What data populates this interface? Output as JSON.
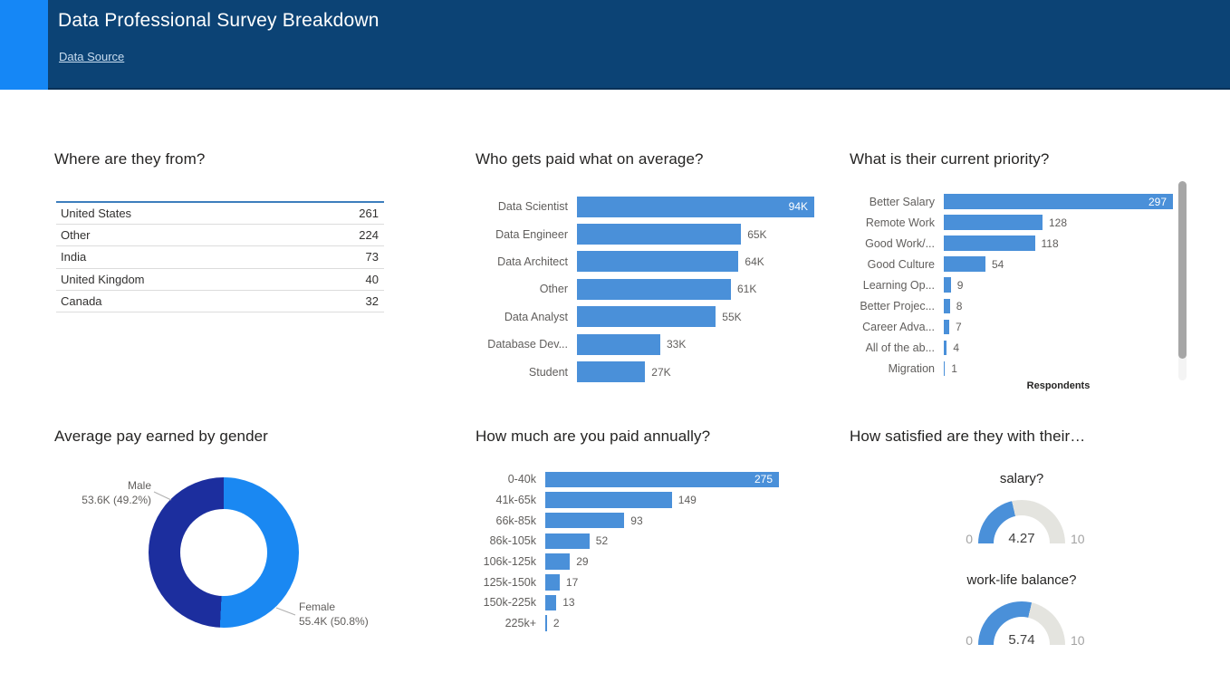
{
  "header": {
    "title": "Data Professional Survey Breakdown",
    "link_label": "Data Source"
  },
  "colors": {
    "header_bg": "#0c4375",
    "accent": "#1587f6",
    "bar_blue": "#4a90d9",
    "donut_male": "#1c2e9e",
    "donut_female": "#1a88f2",
    "gauge_track": "#e4e4df"
  },
  "chart_data": [
    {
      "id": "where_from",
      "type": "table",
      "title": "Where are they from?",
      "rows": [
        {
          "label": "United States",
          "value": "261"
        },
        {
          "label": "Other",
          "value": "224"
        },
        {
          "label": "India",
          "value": "73"
        },
        {
          "label": "United Kingdom",
          "value": "40"
        },
        {
          "label": "Canada",
          "value": "32"
        }
      ]
    },
    {
      "id": "avg_pay_by_title",
      "type": "bar",
      "orientation": "horizontal",
      "title": "Who gets paid what on average?",
      "categories": [
        "Data Scientist",
        "Data Engineer",
        "Data Architect",
        "Other",
        "Data Analyst",
        "Database Dev...",
        "Student"
      ],
      "values": [
        94,
        65,
        64,
        61,
        55,
        33,
        27
      ],
      "value_labels": [
        "94K",
        "65K",
        "64K",
        "61K",
        "55K",
        "33K",
        "27K"
      ],
      "xlim": [
        0,
        94
      ]
    },
    {
      "id": "current_priority",
      "type": "bar",
      "orientation": "horizontal",
      "title": "What is their current priority?",
      "categories": [
        "Better Salary",
        "Remote Work",
        "Good Work/...",
        "Good Culture",
        "Learning Op...",
        "Better Projec...",
        "Career Adva...",
        "All of the ab...",
        "Migration"
      ],
      "values": [
        297,
        128,
        118,
        54,
        9,
        8,
        7,
        4,
        1
      ],
      "value_labels": [
        "297",
        "128",
        "118",
        "54",
        "9",
        "8",
        "7",
        "4",
        "1"
      ],
      "xlabel": "Respondents",
      "xlim": [
        0,
        297
      ],
      "scrollbar": true
    },
    {
      "id": "pay_by_gender",
      "type": "donut",
      "title": "Average pay earned by gender",
      "slices": [
        {
          "label": "Male",
          "value_label": "53.6K (49.2%)",
          "percent": 49.2
        },
        {
          "label": "Female",
          "value_label": "55.4K (50.8%)",
          "percent": 50.8
        }
      ]
    },
    {
      "id": "annual_pay",
      "type": "bar",
      "orientation": "horizontal",
      "title": "How much are you paid annually?",
      "categories": [
        "0-40k",
        "41k-65k",
        "66k-85k",
        "86k-105k",
        "106k-125k",
        "125k-150k",
        "150k-225k",
        "225k+"
      ],
      "values": [
        275,
        149,
        93,
        52,
        29,
        17,
        13,
        2
      ],
      "value_labels": [
        "275",
        "149",
        "93",
        "52",
        "29",
        "17",
        "13",
        "2"
      ],
      "xlim": [
        0,
        275
      ]
    },
    {
      "id": "satisfaction",
      "type": "gauge",
      "title": "How satisfied are they with their…",
      "gauges": [
        {
          "label": "salary?",
          "value": 4.27,
          "value_label": "4.27",
          "min": 0,
          "max": 10,
          "min_label": "0",
          "max_label": "10"
        },
        {
          "label": "work-life balance?",
          "value": 5.74,
          "value_label": "5.74",
          "min": 0,
          "max": 10,
          "min_label": "0",
          "max_label": "10"
        }
      ]
    }
  ]
}
